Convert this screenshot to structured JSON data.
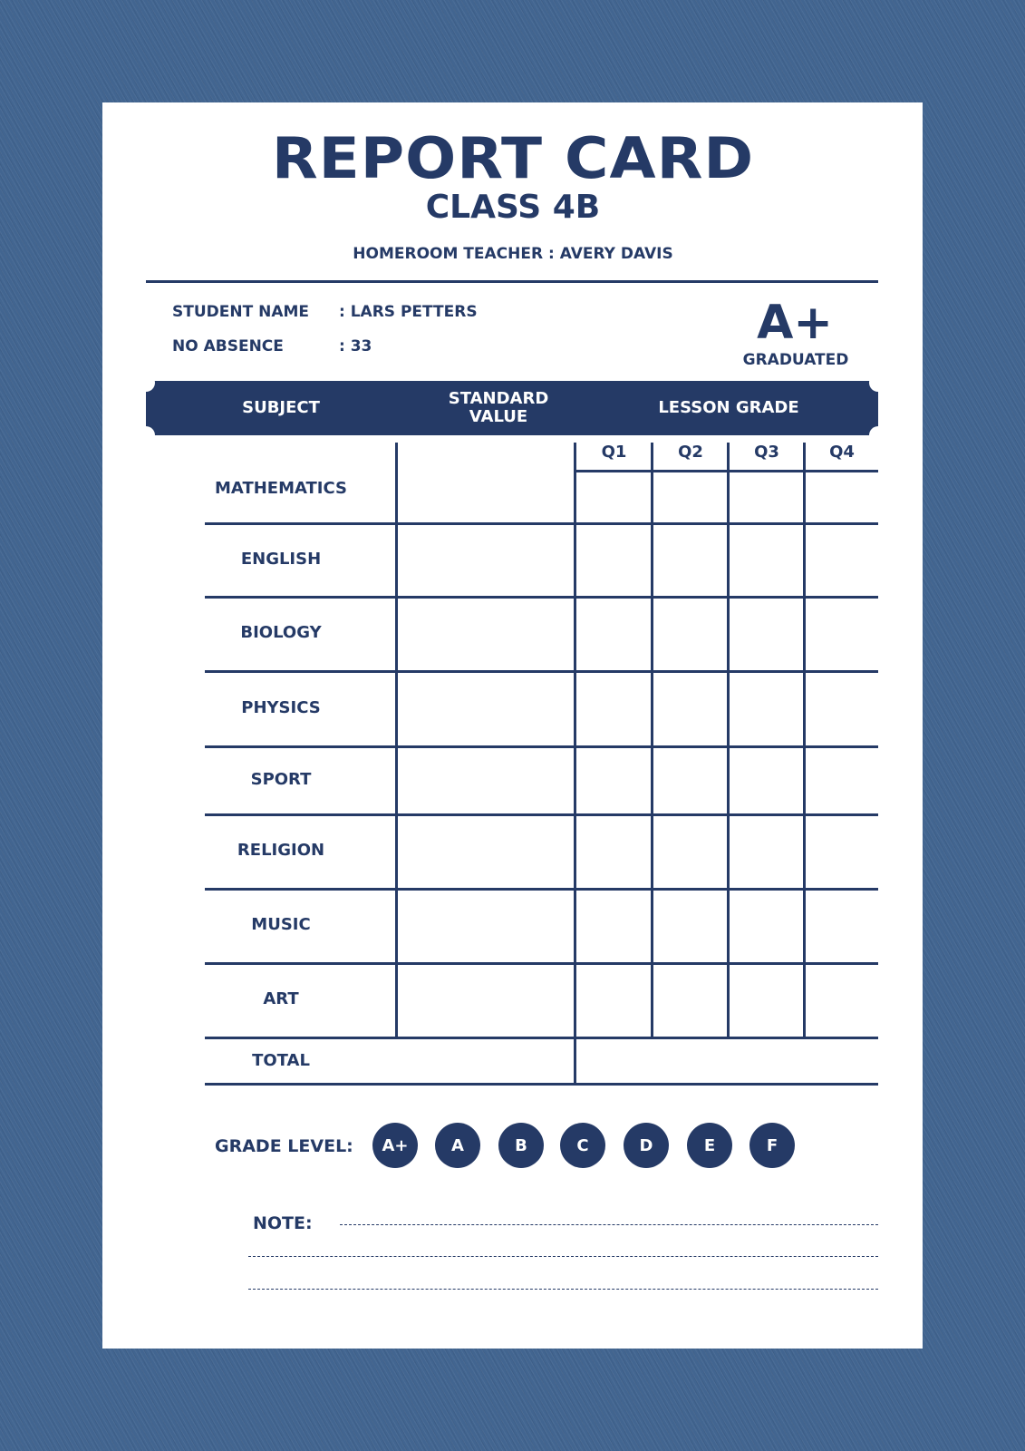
{
  "colors": {
    "navy": "#253a66",
    "background": "#426590",
    "paper": "#ffffff"
  },
  "header": {
    "title": "REPORT CARD",
    "class": "CLASS 4B",
    "teacher": "HOMEROOM TEACHER : AVERY DAVIS"
  },
  "student": {
    "name_label": "STUDENT NAME",
    "name_value": ": LARS PETTERS",
    "absence_label": "NO ABSENCE",
    "absence_value": ": 33",
    "grade": "A+",
    "grade_status": "GRADUATED"
  },
  "table": {
    "headers": {
      "subject": "SUBJECT",
      "standard_value": "STANDARD\nVALUE",
      "lesson_grade": "LESSON GRADE"
    },
    "quarters": [
      "Q1",
      "Q2",
      "Q3",
      "Q4"
    ],
    "subjects": [
      "MATHEMATICS",
      "ENGLISH",
      "BIOLOGY",
      "PHYSICS",
      "SPORT",
      "RELIGION",
      "MUSIC",
      "ART"
    ],
    "total_label": "TOTAL"
  },
  "grade_level": {
    "label": "GRADE LEVEL:",
    "grades": [
      "A+",
      "A",
      "B",
      "C",
      "D",
      "E",
      "F"
    ]
  },
  "note": {
    "label": "NOTE:"
  }
}
